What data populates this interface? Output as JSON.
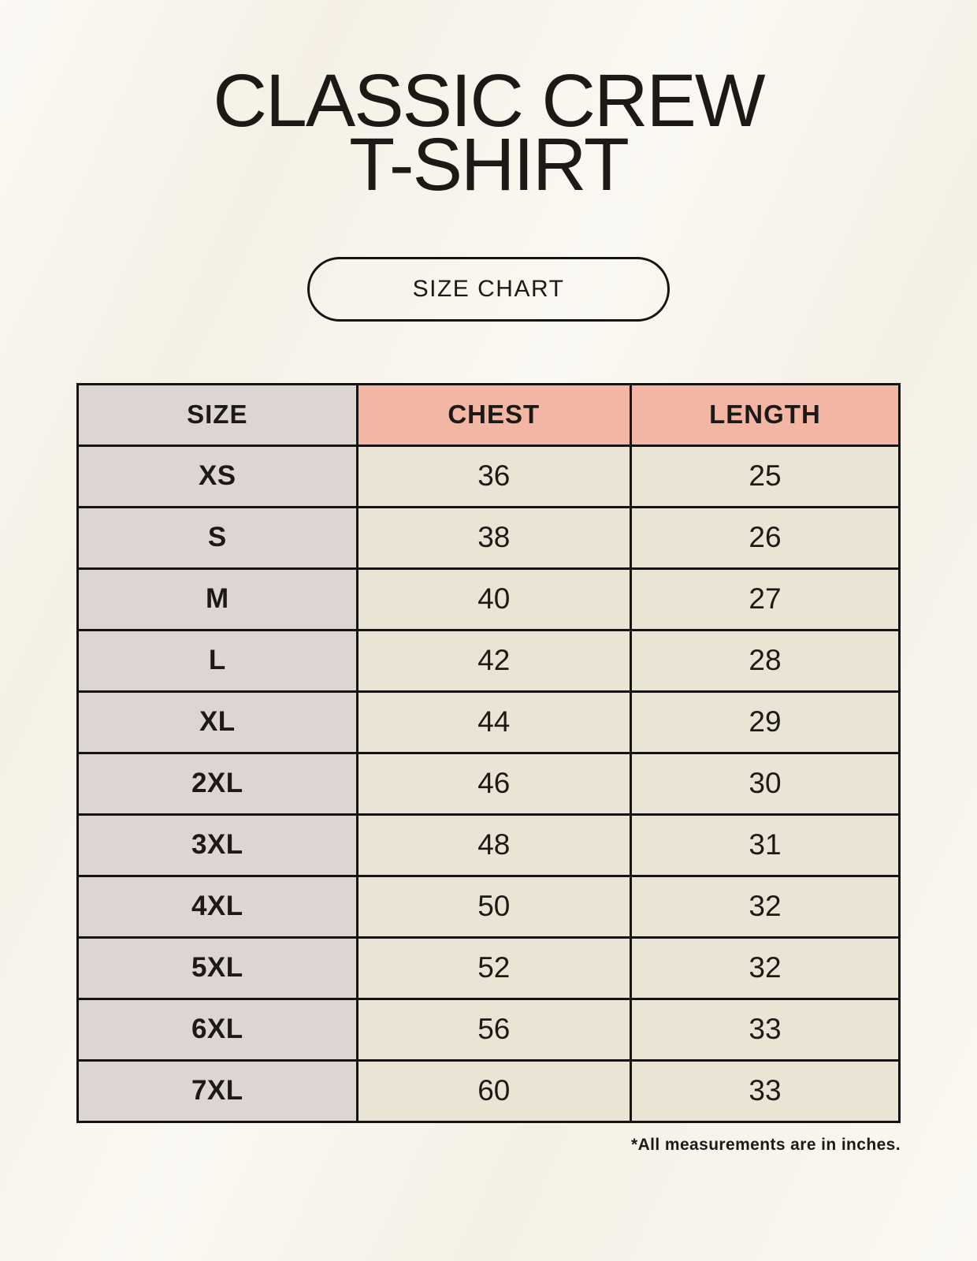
{
  "page": {
    "title_line1": "CLASSIC CREW",
    "title_line2": "T-SHIRT",
    "badge_label": "SIZE CHART",
    "footnote": "*All measurements are in inches."
  },
  "colors": {
    "background": "#f8f4eb",
    "header_accent": "#f3b5a4",
    "size_column": "#ddd5d2",
    "cell": "#eae4d5",
    "border": "#161412",
    "text": "#1c1917"
  },
  "chart_data": {
    "type": "table",
    "title": "Classic Crew T-Shirt Size Chart",
    "columns": [
      "SIZE",
      "CHEST",
      "LENGTH"
    ],
    "rows": [
      [
        "XS",
        36,
        25
      ],
      [
        "S",
        38,
        26
      ],
      [
        "M",
        40,
        27
      ],
      [
        "L",
        42,
        28
      ],
      [
        "XL",
        44,
        29
      ],
      [
        "2XL",
        46,
        30
      ],
      [
        "3XL",
        48,
        31
      ],
      [
        "4XL",
        50,
        32
      ],
      [
        "5XL",
        52,
        32
      ],
      [
        "6XL",
        56,
        33
      ],
      [
        "7XL",
        60,
        33
      ]
    ],
    "units": "inches"
  }
}
